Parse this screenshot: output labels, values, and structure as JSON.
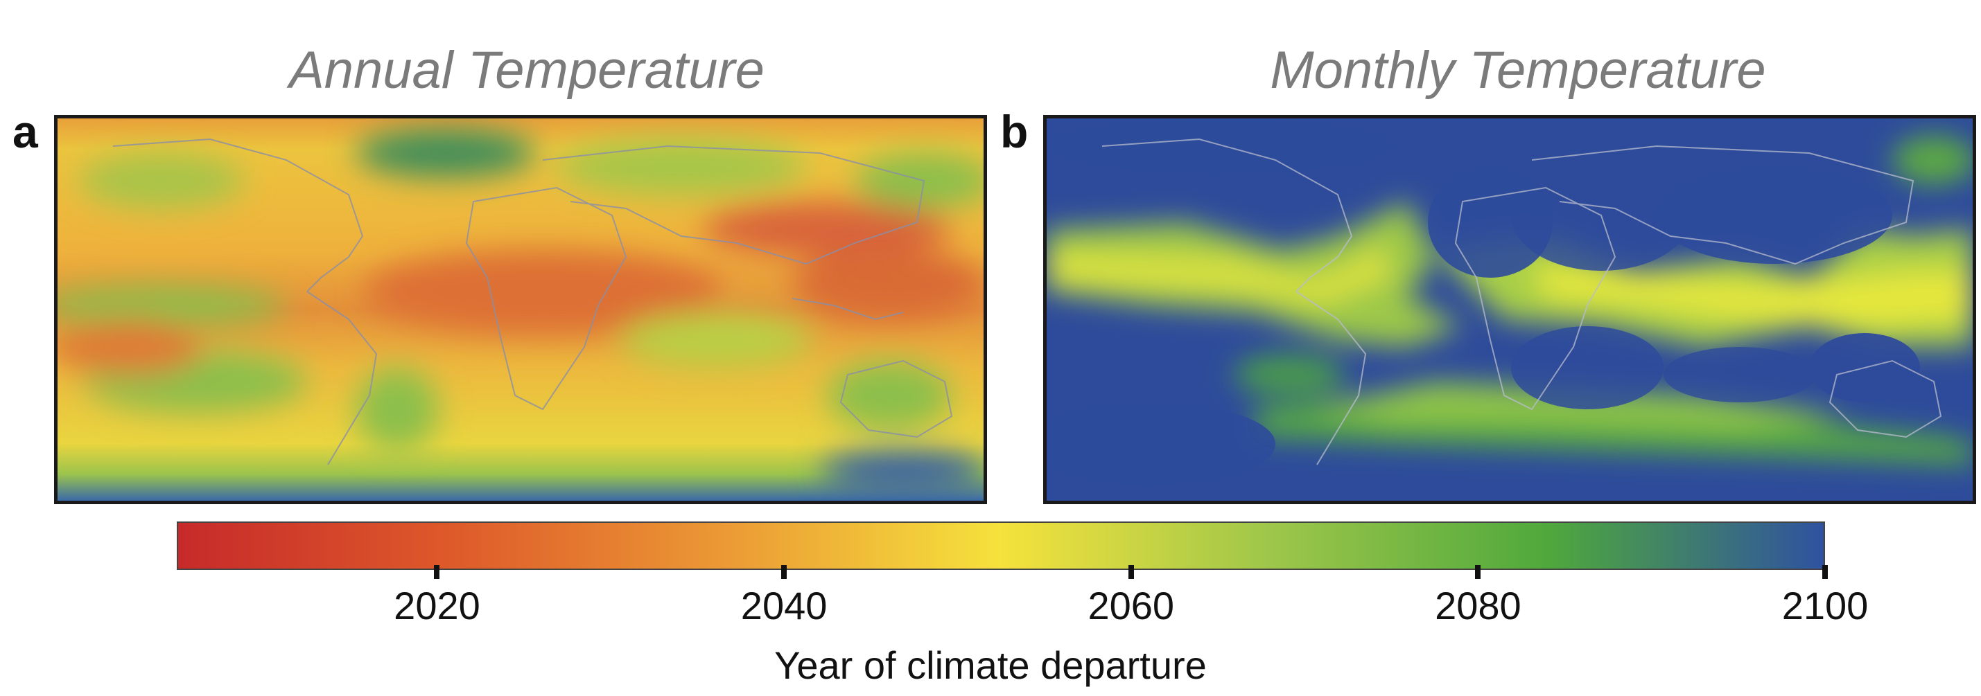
{
  "panels": [
    {
      "letter": "a",
      "title": "Annual Temperature"
    },
    {
      "letter": "b",
      "title": "Monthly Temperature"
    }
  ],
  "colorbar": {
    "label": "Year of climate departure",
    "ticks": [
      "2020",
      "2040",
      "2060",
      "2080",
      "2100"
    ],
    "range": [
      2005,
      2100
    ],
    "colors": [
      "#c62a2a",
      "#de5a2a",
      "#eb9a35",
      "#f5e23c",
      "#9cc64a",
      "#4fa83c",
      "#2f52a0"
    ]
  },
  "colors": {
    "title_gray": "#7b7b7b",
    "annual_dominant": "#e9b43a",
    "monthly_dominant": "#2d4b9c"
  }
}
